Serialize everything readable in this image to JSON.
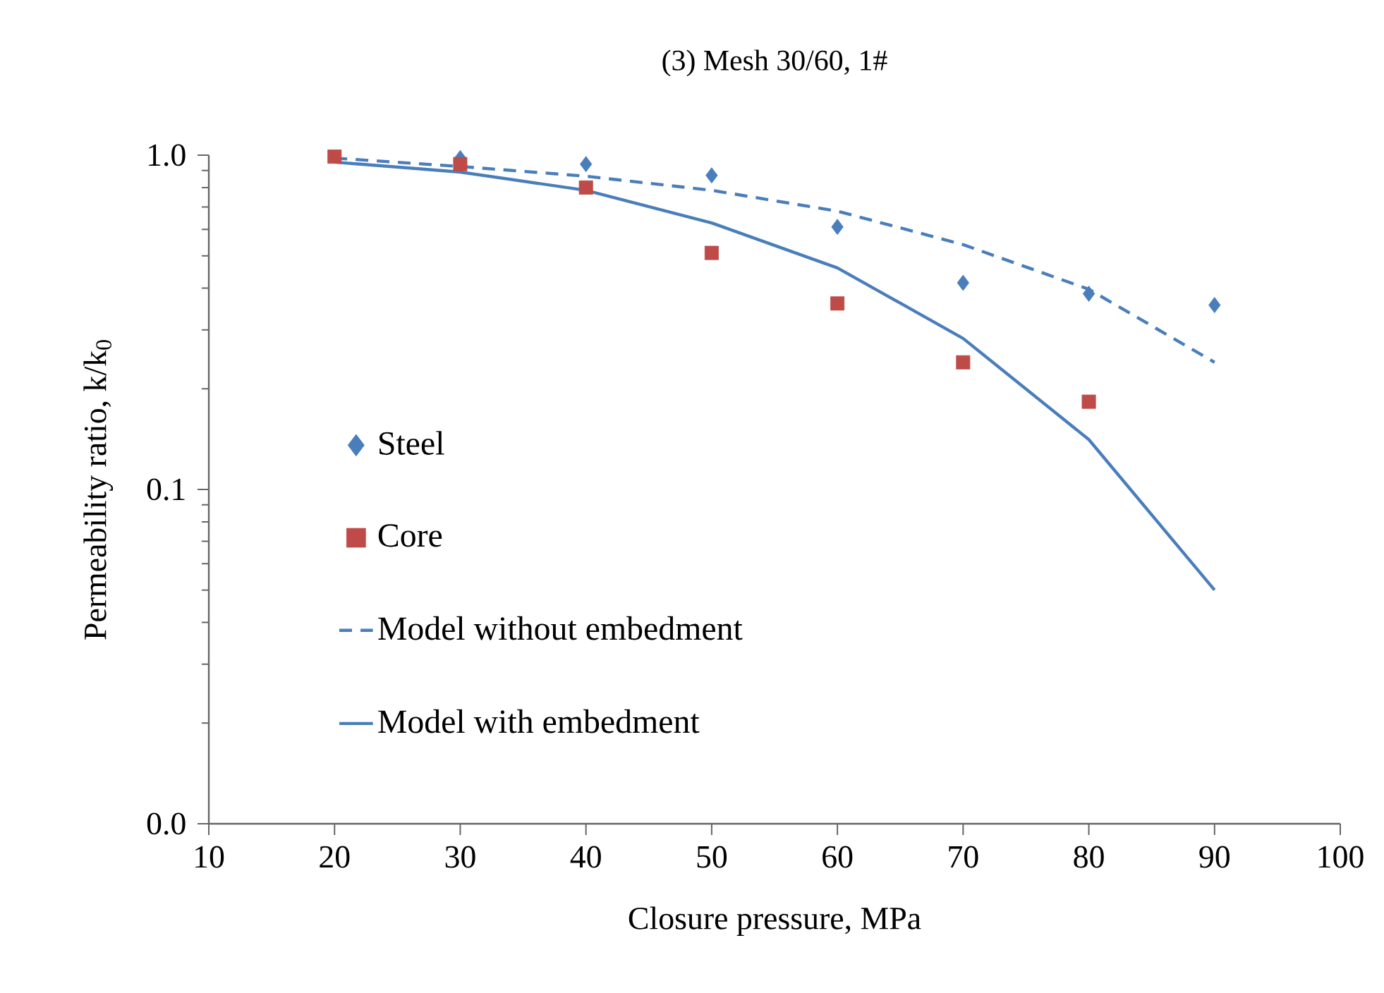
{
  "chart_data": {
    "type": "scatter",
    "title": "(3) Mesh 30/60, 1#",
    "xlabel": "Closure pressure, MPa",
    "ylabel": "Permeability ratio, k/k$_{0}$",
    "log": "y",
    "grid": false,
    "legend": "left",
    "xlim": [
      10,
      100
    ],
    "xticks": [
      10,
      20,
      30,
      40,
      50,
      60,
      70,
      80,
      90,
      100
    ],
    "ylim": [
      0.01,
      1
    ],
    "yticks": [
      {
        "value": 0.01,
        "label": "0.0"
      },
      0.1,
      {
        "value": 1,
        "label": "1.0"
      }
    ],
    "series": [
      {
        "name": "Steel",
        "type": "scatter",
        "marker": "diamond",
        "color": "#4a7ebb",
        "x": [
          30,
          40,
          50,
          60,
          70,
          80,
          90
        ],
        "values": [
          0.98,
          0.94,
          0.87,
          0.61,
          0.415,
          0.385,
          0.356
        ]
      },
      {
        "name": "Core",
        "type": "scatter",
        "marker": "square",
        "color": "#be4b48",
        "x": [
          20,
          30,
          40,
          50,
          60,
          70,
          80
        ],
        "values": [
          0.99,
          0.94,
          0.8,
          0.51,
          0.36,
          0.24,
          0.183
        ]
      },
      {
        "name": "Model without embedment",
        "type": "line",
        "line_style": "dashed",
        "color": "#4a7ebb",
        "x": [
          20,
          30,
          40,
          50,
          60,
          70,
          80,
          90
        ],
        "values": [
          0.98,
          0.925,
          0.865,
          0.785,
          0.68,
          0.54,
          0.397,
          0.24
        ]
      },
      {
        "name": "Model with embedment",
        "type": "line",
        "line_style": "solid",
        "color": "#4a7ebb",
        "x": [
          20,
          30,
          40,
          50,
          60,
          70,
          80,
          90
        ],
        "values": [
          0.953,
          0.89,
          0.785,
          0.627,
          0.46,
          0.283,
          0.141,
          0.05
        ]
      }
    ]
  }
}
